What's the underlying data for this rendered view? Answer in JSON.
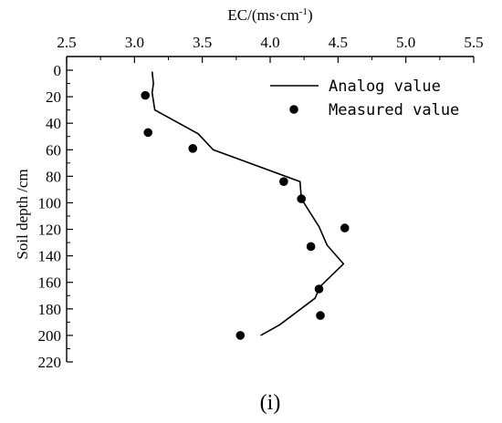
{
  "chart_data": {
    "type": "line",
    "xlabel": "EC/(ms·cm⁻¹)",
    "ylabel": "Soil depth /cm",
    "xlim": [
      2.5,
      5.5
    ],
    "ylim": [
      220,
      0
    ],
    "x_axis_position": "top",
    "y_inverted": true,
    "xticks": [
      "2.5",
      "3.0",
      "3.5",
      "4.0",
      "4.5",
      "5.0",
      "5.5"
    ],
    "yticks": [
      "0",
      "20",
      "40",
      "60",
      "80",
      "100",
      "120",
      "140",
      "160",
      "180",
      "200",
      "220"
    ],
    "grid": false,
    "legend_position": "top-right",
    "caption": "(i)",
    "series": [
      {
        "name": "Analog value",
        "style": "line",
        "color": "#000000",
        "points": [
          {
            "ec": 3.13,
            "depth": 1
          },
          {
            "ec": 3.14,
            "depth": 10
          },
          {
            "ec": 3.13,
            "depth": 17
          },
          {
            "ec": 3.15,
            "depth": 30
          },
          {
            "ec": 3.47,
            "depth": 48
          },
          {
            "ec": 3.58,
            "depth": 60
          },
          {
            "ec": 4.22,
            "depth": 84
          },
          {
            "ec": 4.23,
            "depth": 97
          },
          {
            "ec": 4.36,
            "depth": 118
          },
          {
            "ec": 4.42,
            "depth": 132
          },
          {
            "ec": 4.54,
            "depth": 146
          },
          {
            "ec": 4.37,
            "depth": 163
          },
          {
            "ec": 4.33,
            "depth": 172
          },
          {
            "ec": 4.07,
            "depth": 192
          },
          {
            "ec": 3.93,
            "depth": 200
          }
        ]
      },
      {
        "name": "Measured value",
        "style": "marker",
        "color": "#000000",
        "points": [
          {
            "ec": 3.08,
            "depth": 19
          },
          {
            "ec": 3.1,
            "depth": 47
          },
          {
            "ec": 3.43,
            "depth": 59
          },
          {
            "ec": 4.1,
            "depth": 84
          },
          {
            "ec": 4.23,
            "depth": 97
          },
          {
            "ec": 4.55,
            "depth": 119
          },
          {
            "ec": 4.3,
            "depth": 133
          },
          {
            "ec": 4.36,
            "depth": 165
          },
          {
            "ec": 4.37,
            "depth": 185
          },
          {
            "ec": 3.78,
            "depth": 200
          }
        ]
      }
    ]
  }
}
